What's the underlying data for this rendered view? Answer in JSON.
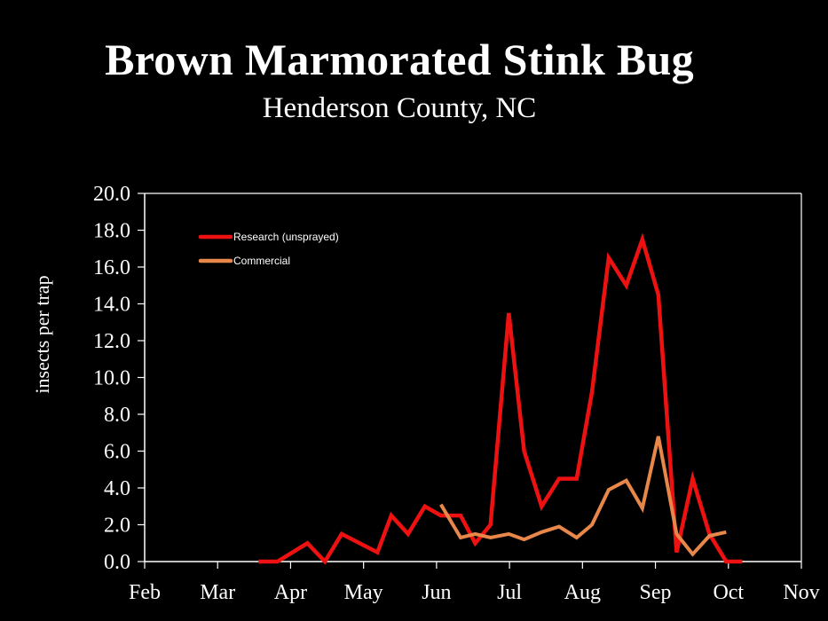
{
  "header": {
    "title": "Brown Marmorated Stink Bug",
    "subtitle": "Henderson County, NC"
  },
  "axes": {
    "ylabel": "insects per trap",
    "yticks": [
      "0.0",
      "2.0",
      "4.0",
      "6.0",
      "8.0",
      "10.0",
      "12.0",
      "14.0",
      "16.0",
      "18.0",
      "20.0"
    ],
    "xticks": [
      "Feb",
      "Mar",
      "Apr",
      "May",
      "Jun",
      "Jul",
      "Aug",
      "Sep",
      "Oct",
      "Nov"
    ]
  },
  "legend": {
    "items": [
      {
        "label": "Research (unsprayed)",
        "color": "#ee1111"
      },
      {
        "label": "Commercial",
        "color": "#e8874a"
      }
    ]
  },
  "colors": {
    "background": "#000000",
    "axis": "#ffffff",
    "research": "#ee1111",
    "commercial": "#e8874a"
  },
  "chart_data": {
    "type": "line",
    "title": "Brown Marmorated Stink Bug",
    "subtitle": "Henderson County, NC",
    "xlabel": "",
    "ylabel": "insects per trap",
    "ylim": [
      0,
      20
    ],
    "xlim": [
      "Feb",
      "Nov"
    ],
    "x_unit": "months since Feb 1",
    "grid": false,
    "legend_position": "upper left inside",
    "series": [
      {
        "name": "Research (unsprayed)",
        "color": "#ee1111",
        "x": [
          1.56,
          1.82,
          2.23,
          2.47,
          2.7,
          3.19,
          3.38,
          3.61,
          3.84,
          4.06,
          4.33,
          4.53,
          4.74,
          4.99,
          5.2,
          5.44,
          5.68,
          5.92,
          6.13,
          6.36,
          6.6,
          6.82,
          7.04,
          7.29,
          7.51,
          7.74,
          7.97,
          8.19
        ],
        "values": [
          0,
          0,
          1.0,
          0,
          1.5,
          0.5,
          2.5,
          1.5,
          3.0,
          2.5,
          2.5,
          1.0,
          2.0,
          13.5,
          6.0,
          3.0,
          4.5,
          4.5,
          9.2,
          16.5,
          15.0,
          17.5,
          14.5,
          0.5,
          4.5,
          1.5,
          0,
          0
        ]
      },
      {
        "name": "Commercial",
        "color": "#e8874a",
        "x": [
          4.06,
          4.33,
          4.53,
          4.74,
          4.99,
          5.2,
          5.44,
          5.68,
          5.92,
          6.13,
          6.36,
          6.6,
          6.82,
          7.04,
          7.29,
          7.51,
          7.74,
          7.97
        ],
        "values": [
          3.1,
          1.3,
          1.5,
          1.3,
          1.5,
          1.2,
          1.6,
          1.9,
          1.3,
          2.0,
          3.9,
          4.4,
          2.9,
          6.8,
          1.5,
          0.4,
          1.4,
          1.6
        ]
      }
    ]
  }
}
